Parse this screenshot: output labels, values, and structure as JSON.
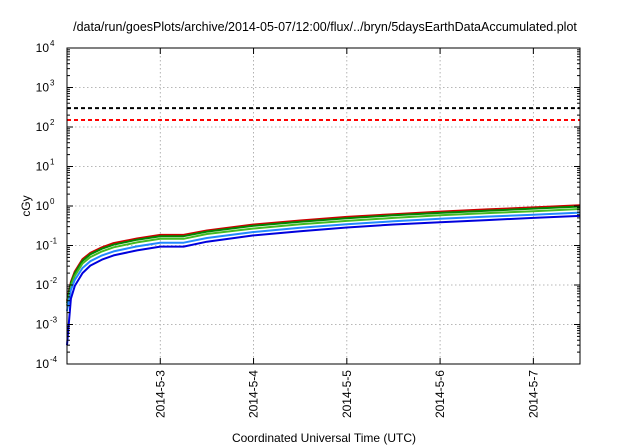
{
  "chart_data": {
    "type": "line",
    "title": "/data/run/goesPlots/archive/2014-05-07/12:00/flux/../bryn/5daysEarthDataAccumulated.plot",
    "xlabel": "Coordinated Universal Time (UTC)",
    "ylabel": "cGy",
    "yscale": "log",
    "ylim": [
      0.0001,
      10000
    ],
    "xlim": [
      "2014-05-02 00:00",
      "2014-05-07 12:00"
    ],
    "grid": true,
    "x_ticks": [
      "2014-5-3",
      "2014-5-4",
      "2014-5-5",
      "2014-5-6",
      "2014-5-7"
    ],
    "y_ticks": [
      {
        "value": 0.0001,
        "base": "10",
        "exp": "-4"
      },
      {
        "value": 0.001,
        "base": "10",
        "exp": "-3"
      },
      {
        "value": 0.01,
        "base": "10",
        "exp": "-2"
      },
      {
        "value": 0.1,
        "base": "10",
        "exp": "-1"
      },
      {
        "value": 1,
        "base": "10",
        "exp": "0"
      },
      {
        "value": 10,
        "base": "10",
        "exp": "1"
      },
      {
        "value": 100,
        "base": "10",
        "exp": "2"
      },
      {
        "value": 1000,
        "base": "10",
        "exp": "3"
      },
      {
        "value": 10000,
        "base": "10",
        "exp": "4"
      }
    ],
    "x": [
      "2014-05-02 00:00",
      "2014-05-02 01:00",
      "2014-05-02 02:00",
      "2014-05-02 04:00",
      "2014-05-02 06:00",
      "2014-05-02 09:00",
      "2014-05-02 12:00",
      "2014-05-02 18:00",
      "2014-05-03 00:00",
      "2014-05-03 06:00",
      "2014-05-03 12:00",
      "2014-05-04 00:00",
      "2014-05-04 12:00",
      "2014-05-05 00:00",
      "2014-05-05 12:00",
      "2014-05-06 00:00",
      "2014-05-06 12:00",
      "2014-05-07 00:00",
      "2014-05-07 12:00"
    ],
    "series": [
      {
        "color": "#cc0000",
        "width": 2,
        "values": [
          0.004,
          0.012,
          0.022,
          0.045,
          0.065,
          0.09,
          0.115,
          0.15,
          0.185,
          0.185,
          0.24,
          0.34,
          0.43,
          0.53,
          0.62,
          0.72,
          0.82,
          0.92,
          1.05
        ]
      },
      {
        "color": "#008800",
        "width": 2,
        "values": [
          0.0035,
          0.011,
          0.02,
          0.041,
          0.06,
          0.083,
          0.105,
          0.14,
          0.172,
          0.172,
          0.225,
          0.315,
          0.4,
          0.49,
          0.58,
          0.67,
          0.76,
          0.86,
          0.97
        ]
      },
      {
        "color": "#44bb22",
        "width": 2,
        "values": [
          0.003,
          0.0095,
          0.017,
          0.035,
          0.051,
          0.071,
          0.09,
          0.12,
          0.148,
          0.148,
          0.195,
          0.27,
          0.345,
          0.42,
          0.5,
          0.58,
          0.66,
          0.74,
          0.84
        ]
      },
      {
        "color": "#2288ff",
        "width": 2,
        "values": [
          0.0022,
          0.0075,
          0.0135,
          0.027,
          0.04,
          0.056,
          0.071,
          0.095,
          0.118,
          0.118,
          0.155,
          0.22,
          0.28,
          0.345,
          0.41,
          0.475,
          0.54,
          0.6,
          0.68
        ]
      },
      {
        "color": "#0000dd",
        "width": 2,
        "values": [
          0.0003,
          0.0045,
          0.0095,
          0.02,
          0.031,
          0.044,
          0.056,
          0.075,
          0.094,
          0.094,
          0.125,
          0.18,
          0.23,
          0.285,
          0.34,
          0.39,
          0.44,
          0.5,
          0.56
        ]
      }
    ],
    "threshold_lines": [
      {
        "value": 300,
        "color": "#000000",
        "style": "dashed"
      },
      {
        "value": 150,
        "color": "#ff0000",
        "style": "dashed"
      }
    ]
  }
}
